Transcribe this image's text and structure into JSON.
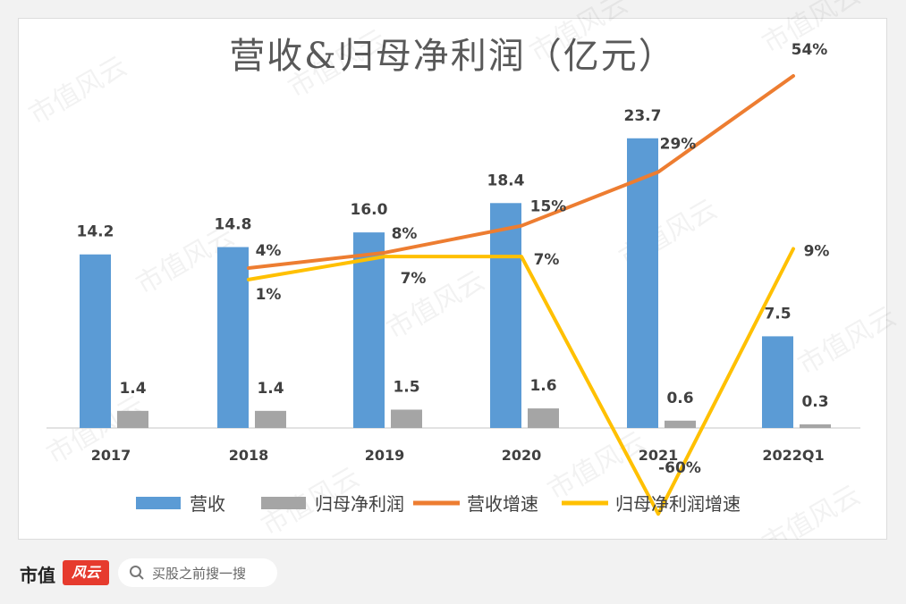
{
  "chart_data": {
    "type": "bar",
    "title": "营收&归母净利润（亿元）",
    "categories": [
      "2017",
      "2018",
      "2019",
      "2020",
      "2021",
      "2022Q1"
    ],
    "series": [
      {
        "name": "营收",
        "type": "bar",
        "color": "#5b9bd5",
        "values": [
          14.2,
          14.8,
          16.0,
          18.4,
          23.7,
          7.5
        ],
        "labels": [
          "14.2",
          "14.8",
          "16.0",
          "18.4",
          "23.7",
          "7.5"
        ]
      },
      {
        "name": "归母净利润",
        "type": "bar",
        "color": "#a5a5a5",
        "values": [
          1.4,
          1.4,
          1.5,
          1.6,
          0.6,
          0.3
        ],
        "labels": [
          "1.4",
          "1.4",
          "1.5",
          "1.6",
          "0.6",
          "0.3"
        ]
      },
      {
        "name": "营收增速",
        "type": "line",
        "color": "#ed7d31",
        "values": [
          null,
          4,
          8,
          15,
          29,
          54
        ],
        "labels": [
          "",
          "4%",
          "8%",
          "15%",
          "29%",
          "54%"
        ]
      },
      {
        "name": "归母净利润增速",
        "type": "line",
        "color": "#ffc000",
        "values": [
          null,
          1,
          7,
          7,
          -60,
          9
        ],
        "labels": [
          "",
          "1%",
          "7%",
          "7%",
          "-60%",
          "9%"
        ]
      }
    ],
    "legend_position": "bottom",
    "grid": false
  },
  "watermark": "市值风云",
  "footer": {
    "brand": "市值",
    "brand_mark": "风云",
    "search_placeholder": "买股之前搜一搜",
    "search_icon": "search-icon"
  }
}
